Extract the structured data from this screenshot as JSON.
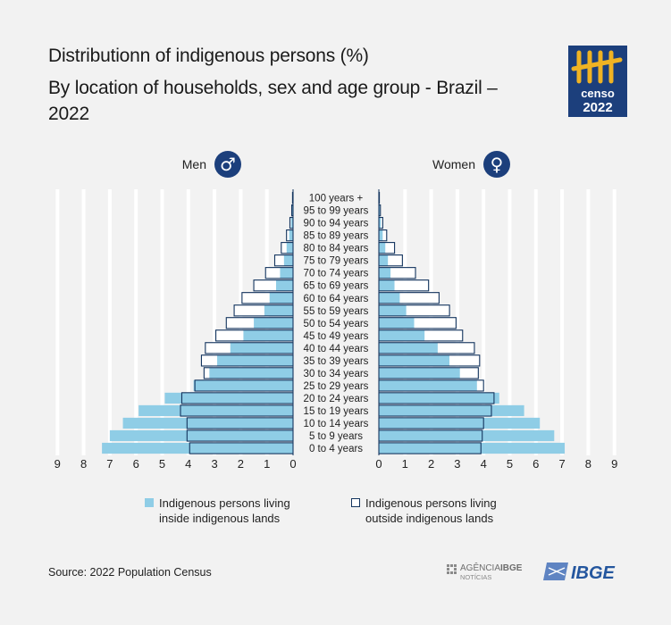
{
  "title": "Distributionn of indigenous persons (%)",
  "subtitle": "By location of households, sex and age group - Brazil – 2022",
  "logo": {
    "text": "censo",
    "year": "2022",
    "color": "#1c3f7c",
    "accent": "#f0b323"
  },
  "source": "Source: 2022 Population Census",
  "footer_logos": {
    "agencia": "AGÊNCIA",
    "agencia_bold": "IBGE",
    "noticias": "NOTÍCIAS",
    "ibge": "IBGE"
  },
  "colors": {
    "inside": "#8fcde6",
    "outside_fill": "#ffffff",
    "outside_stroke": "#14355f",
    "symbol_circle": "#1c3f7c",
    "background": "#f2f2f2"
  },
  "chart_data": {
    "type": "bar",
    "orientation": "horizontal-population-pyramid",
    "panels": [
      {
        "name": "Men",
        "symbol": "♂"
      },
      {
        "name": "Women",
        "symbol": "♀"
      }
    ],
    "categories": [
      "0 to 4 years",
      "5 to 9 years",
      "10 to 14 years",
      "15 to 19 years",
      "20 to 24 years",
      "25 to 29 years",
      "30 to 34 years",
      "35 to 39 years",
      "40 to 44 years",
      "45 to 49 years",
      "50 to 54 years",
      "55 to 59 years",
      "60 to 64 years",
      "65 to 69 years",
      "70 to 74 years",
      "75 to 79 years",
      "80 to 84 years",
      "85 to 89 years",
      "90 to 94 years",
      "95 to 99 years",
      "100 years +"
    ],
    "series": [
      {
        "name": "Indigenous persons living inside indigenous lands",
        "men": [
          7.3,
          7.0,
          6.5,
          5.9,
          4.9,
          3.8,
          3.2,
          2.9,
          2.4,
          1.9,
          1.5,
          1.1,
          0.9,
          0.65,
          0.5,
          0.35,
          0.25,
          0.15,
          0.08,
          0.04,
          0.02
        ],
        "women": [
          7.1,
          6.7,
          6.15,
          5.55,
          4.6,
          3.75,
          3.1,
          2.7,
          2.25,
          1.75,
          1.35,
          1.05,
          0.8,
          0.6,
          0.45,
          0.35,
          0.25,
          0.15,
          0.08,
          0.04,
          0.02
        ]
      },
      {
        "name": "Indigenous persons living outside indigenous lands",
        "men": [
          3.95,
          4.05,
          4.05,
          4.3,
          4.25,
          3.75,
          3.4,
          3.5,
          3.35,
          2.95,
          2.55,
          2.25,
          1.95,
          1.5,
          1.05,
          0.7,
          0.45,
          0.25,
          0.12,
          0.05,
          0.02
        ],
        "women": [
          3.9,
          3.95,
          4.0,
          4.3,
          4.4,
          4.0,
          3.8,
          3.85,
          3.65,
          3.2,
          2.95,
          2.7,
          2.3,
          1.9,
          1.4,
          0.9,
          0.6,
          0.3,
          0.15,
          0.06,
          0.02
        ]
      }
    ],
    "xticks": [
      0,
      1,
      2,
      3,
      4,
      5,
      6,
      7,
      8,
      9
    ],
    "xlim": [
      0,
      9
    ],
    "grid": true,
    "legend_position": "bottom"
  }
}
